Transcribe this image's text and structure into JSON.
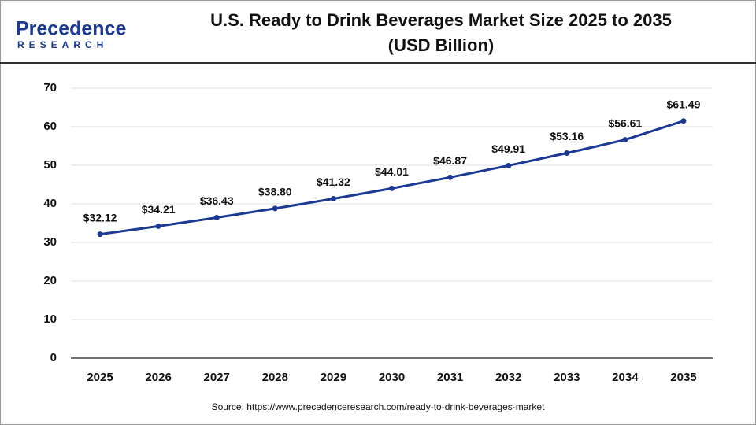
{
  "logo": {
    "name": "Precedence",
    "tagline": "RESEARCH"
  },
  "chart_data": {
    "type": "line",
    "title": "U.S. Ready to Drink Beverages Market Size 2025 to 2035",
    "subtitle": "(USD Billion)",
    "categories": [
      "2025",
      "2026",
      "2027",
      "2028",
      "2029",
      "2030",
      "2031",
      "2032",
      "2033",
      "2034",
      "2035"
    ],
    "values": [
      32.12,
      34.21,
      36.43,
      38.8,
      41.32,
      44.01,
      46.87,
      49.91,
      53.16,
      56.61,
      61.49
    ],
    "value_labels": [
      "$32.12",
      "$34.21",
      "$36.43",
      "$38.80",
      "$41.32",
      "$44.01",
      "$46.87",
      "$49.91",
      "$53.16",
      "$56.61",
      "$61.49"
    ],
    "color": "#1c3a94",
    "ylim": [
      0,
      70
    ],
    "yticks": [
      0,
      10,
      20,
      30,
      40,
      50,
      60,
      70
    ],
    "grid": true,
    "source": "Source: https://www.precedenceresearch.com/ready-to-drink-beverages-market"
  }
}
